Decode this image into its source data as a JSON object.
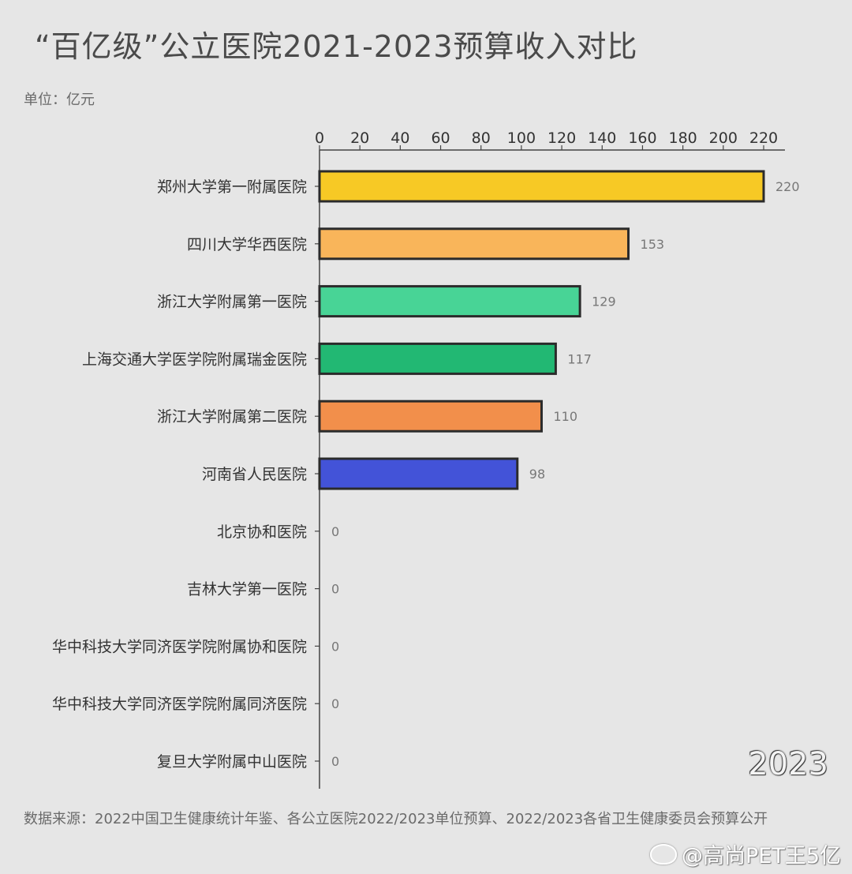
{
  "title": "“百亿级”公立医院2021-2023预算收入对比",
  "unit": "单位：亿元",
  "year": "2023",
  "source": "数据来源：2022中国卫生健康统计年鉴、各公立医院2022/2023单位预算、2022/2023各省卫生健康委员会预算公开",
  "watermark": "@高尚PET王5亿",
  "chart_data": {
    "type": "bar",
    "orientation": "horizontal",
    "title": "“百亿级”公立医院2021-2023预算收入对比",
    "xlim": [
      0,
      220
    ],
    "x_ticks": [
      0,
      20,
      40,
      60,
      80,
      100,
      120,
      140,
      160,
      180,
      200,
      220
    ],
    "axis_position": "top",
    "grid": false,
    "categories": [
      "郑州大学第一附属医院",
      "四川大学华西医院",
      "浙江大学附属第一医院",
      "上海交通大学医学院附属瑞金医院",
      "浙江大学附属第二医院",
      "河南省人民医院",
      "北京协和医院",
      "吉林大学第一医院",
      "华中科技大学同济医学院附属协和医院",
      "华中科技大学同济医学院附属同济医院",
      "复旦大学附属中山医院"
    ],
    "values": [
      220,
      153,
      129,
      117,
      110,
      98,
      0,
      0,
      0,
      0,
      0
    ],
    "colors": [
      "#f7c925",
      "#f9b55a",
      "#48d496",
      "#22b873",
      "#f28f4b",
      "#4353d8",
      "#888888",
      "#888888",
      "#888888",
      "#888888",
      "#888888"
    ]
  }
}
